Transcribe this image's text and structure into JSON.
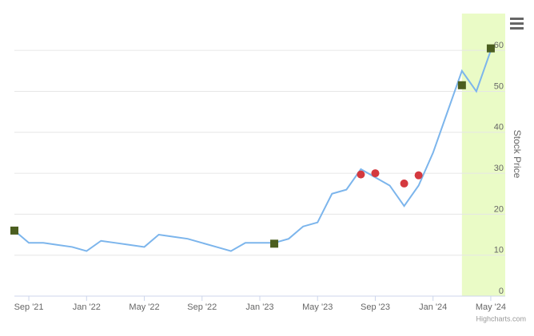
{
  "chart_data": {
    "type": "line",
    "y_axis_title": "Stock Price",
    "credit": "Highcharts.com",
    "x": [
      "2021-08",
      "2021-09",
      "2021-10",
      "2021-11",
      "2021-12",
      "2022-01",
      "2022-02",
      "2022-03",
      "2022-04",
      "2022-05",
      "2022-06",
      "2022-07",
      "2022-08",
      "2022-09",
      "2022-10",
      "2022-11",
      "2022-12",
      "2023-01",
      "2023-02",
      "2023-03",
      "2023-04",
      "2023-05",
      "2023-06",
      "2023-07",
      "2023-08",
      "2023-09",
      "2023-10",
      "2023-11",
      "2023-12",
      "2024-01",
      "2024-02",
      "2024-03",
      "2024-04",
      "2024-05"
    ],
    "values": [
      16,
      13,
      13,
      12.5,
      12,
      11,
      13.5,
      13,
      12.5,
      12,
      15,
      14.5,
      14,
      13,
      12,
      11,
      13,
      13,
      13,
      14,
      17,
      18,
      25,
      26,
      31,
      29,
      27,
      22,
      27,
      35,
      45,
      55,
      50,
      60
    ],
    "color": "#7cb5ec",
    "markers": [
      {
        "shape": "square",
        "color": "#4b5e1f",
        "x": [
          "2021-08",
          "2023-02",
          "2024-03",
          "2024-05"
        ],
        "values": [
          16,
          12.8,
          51.5,
          60.5
        ]
      },
      {
        "shape": "circle",
        "color": "#d4393f",
        "x": [
          "2023-08",
          "2023-09",
          "2023-11",
          "2023-12"
        ],
        "values": [
          29.7,
          30,
          27.5,
          29.5
        ]
      }
    ],
    "plot_band": {
      "from": "2024-03",
      "to": "2024-06",
      "color": "#eafbc6"
    },
    "xlim": [
      "2021-08",
      "2024-06"
    ],
    "xticks": [
      {
        "value": "2021-09",
        "label": "Sep '21"
      },
      {
        "value": "2022-01",
        "label": "Jan '22"
      },
      {
        "value": "2022-05",
        "label": "May '22"
      },
      {
        "value": "2022-09",
        "label": "Sep '22"
      },
      {
        "value": "2023-01",
        "label": "Jan '23"
      },
      {
        "value": "2023-05",
        "label": "May '23"
      },
      {
        "value": "2023-09",
        "label": "Sep '23"
      },
      {
        "value": "2024-01",
        "label": "Jan '24"
      },
      {
        "value": "2024-05",
        "label": "May '24"
      }
    ],
    "ylim": [
      0,
      69
    ],
    "yticks": [
      0,
      10,
      20,
      30,
      40,
      50,
      60
    ],
    "grid": true
  }
}
